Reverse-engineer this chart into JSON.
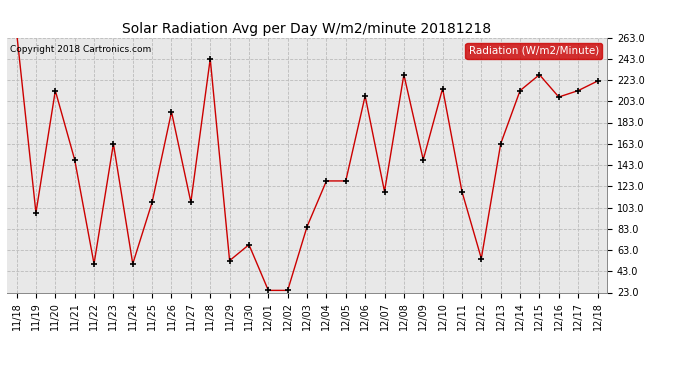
{
  "title": "Solar Radiation Avg per Day W/m2/minute 20181218",
  "copyright_text": "Copyright 2018 Cartronics.com",
  "legend_label": "Radiation (W/m2/Minute)",
  "legend_bg": "#cc0000",
  "legend_fg": "#ffffff",
  "line_color": "#cc0000",
  "marker_color": "#000000",
  "bg_color": "#ffffff",
  "plot_bg_color": "#e8e8e8",
  "grid_color": "#bbbbbb",
  "ylim": [
    23.0,
    263.0
  ],
  "yticks": [
    23.0,
    43.0,
    63.0,
    83.0,
    103.0,
    123.0,
    143.0,
    163.0,
    183.0,
    203.0,
    223.0,
    243.0,
    263.0
  ],
  "dates": [
    "11/18",
    "11/19",
    "11/20",
    "11/21",
    "11/22",
    "11/23",
    "11/24",
    "11/25",
    "11/26",
    "11/27",
    "11/28",
    "11/29",
    "11/30",
    "12/01",
    "12/02",
    "12/03",
    "12/04",
    "12/05",
    "12/06",
    "12/07",
    "12/08",
    "12/09",
    "12/10",
    "12/11",
    "12/12",
    "12/13",
    "12/14",
    "12/15",
    "12/16",
    "12/17",
    "12/18"
  ],
  "values": [
    268,
    98,
    213,
    148,
    50,
    163,
    50,
    108,
    193,
    108,
    243,
    53,
    68,
    25,
    25,
    85,
    128,
    128,
    208,
    118,
    228,
    148,
    215,
    118,
    55,
    163,
    213,
    228,
    207,
    213,
    222
  ],
  "figsize": [
    6.9,
    3.75
  ],
  "dpi": 100,
  "title_fontsize": 10,
  "tick_fontsize": 7,
  "copyright_fontsize": 6.5,
  "legend_fontsize": 7.5
}
